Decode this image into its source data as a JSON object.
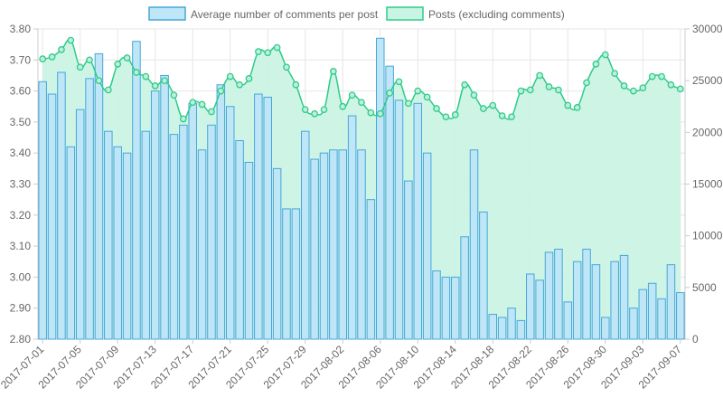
{
  "chart_data": {
    "type": "bar",
    "legend": {
      "position": "top"
    },
    "colors": {
      "bar_fill": "#bfe6f6",
      "bar_stroke": "#45a7d9",
      "area_fill": "#c9f3e2",
      "line": "#2ecc8a",
      "grid": "#e6e6e6"
    },
    "y_left": {
      "min": 2.8,
      "max": 3.8,
      "step": 0.1,
      "decimals": 2
    },
    "y_right": {
      "min": 0,
      "max": 30000,
      "step": 5000,
      "decimals": 0
    },
    "dates": [
      "2017-07-01",
      "2017-07-02",
      "2017-07-03",
      "2017-07-04",
      "2017-07-05",
      "2017-07-06",
      "2017-07-07",
      "2017-07-08",
      "2017-07-09",
      "2017-07-10",
      "2017-07-11",
      "2017-07-12",
      "2017-07-13",
      "2017-07-14",
      "2017-07-15",
      "2017-07-16",
      "2017-07-17",
      "2017-07-18",
      "2017-07-19",
      "2017-07-20",
      "2017-07-21",
      "2017-07-22",
      "2017-07-23",
      "2017-07-24",
      "2017-07-25",
      "2017-07-26",
      "2017-07-27",
      "2017-07-28",
      "2017-07-29",
      "2017-07-30",
      "2017-07-31",
      "2017-08-01",
      "2017-08-02",
      "2017-08-03",
      "2017-08-04",
      "2017-08-05",
      "2017-08-06",
      "2017-08-07",
      "2017-08-08",
      "2017-08-09",
      "2017-08-10",
      "2017-08-11",
      "2017-08-12",
      "2017-08-13",
      "2017-08-14",
      "2017-08-15",
      "2017-08-16",
      "2017-08-17",
      "2017-08-18",
      "2017-08-19",
      "2017-08-20",
      "2017-08-21",
      "2017-08-22",
      "2017-08-23",
      "2017-08-24",
      "2017-08-25",
      "2017-08-26",
      "2017-08-27",
      "2017-08-28",
      "2017-08-29",
      "2017-08-30",
      "2017-08-31",
      "2017-09-01",
      "2017-09-02",
      "2017-09-03",
      "2017-09-04",
      "2017-09-05",
      "2017-09-06",
      "2017-09-07"
    ],
    "x_tick_labels": [
      "2017-07-01",
      "2017-07-05",
      "2017-07-09",
      "2017-07-13",
      "2017-07-17",
      "2017-07-21",
      "2017-07-25",
      "2017-07-29",
      "2017-08-02",
      "2017-08-06",
      "2017-08-10",
      "2017-08-14",
      "2017-08-18",
      "2017-08-22",
      "2017-08-26",
      "2017-08-30",
      "2017-09-03",
      "2017-09-07"
    ],
    "series": [
      {
        "name": "Average number of comments per post",
        "type": "bar",
        "axis": "left",
        "values": [
          3.63,
          3.59,
          3.66,
          3.42,
          3.54,
          3.64,
          3.72,
          3.47,
          3.42,
          3.4,
          3.76,
          3.47,
          3.6,
          3.65,
          3.46,
          3.49,
          3.56,
          3.41,
          3.49,
          3.62,
          3.55,
          3.44,
          3.37,
          3.59,
          3.58,
          3.35,
          3.22,
          3.22,
          3.47,
          3.38,
          3.4,
          3.41,
          3.41,
          3.52,
          3.41,
          3.25,
          3.77,
          3.68,
          3.57,
          3.31,
          3.56,
          3.4,
          3.02,
          3.0,
          3.0,
          3.13,
          3.41,
          3.21,
          2.88,
          2.87,
          2.9,
          2.86,
          3.01,
          2.99,
          3.08,
          3.09,
          2.92,
          3.05,
          3.09,
          3.04,
          2.87,
          3.05,
          3.07,
          2.9,
          2.96,
          2.98,
          2.93,
          3.04,
          2.95
        ]
      },
      {
        "name": "Posts (excluding comments)",
        "type": "area-line",
        "axis": "right",
        "values": [
          27100,
          27300,
          28000,
          28900,
          26300,
          27000,
          25000,
          24100,
          26600,
          27200,
          25800,
          25400,
          24500,
          25000,
          23600,
          21300,
          22900,
          22700,
          22000,
          24000,
          25400,
          24600,
          25200,
          27800,
          27700,
          28200,
          26300,
          24600,
          22200,
          21800,
          22200,
          25900,
          22500,
          23600,
          22900,
          21900,
          21800,
          23800,
          24900,
          22800,
          24000,
          23400,
          22300,
          21500,
          21700,
          24600,
          23600,
          22300,
          22600,
          21600,
          21500,
          24000,
          24100,
          25500,
          24400,
          24100,
          22600,
          22400,
          24800,
          26600,
          27500,
          25700,
          24500,
          24000,
          24300,
          25400,
          25400,
          24600,
          24200
        ]
      }
    ]
  }
}
